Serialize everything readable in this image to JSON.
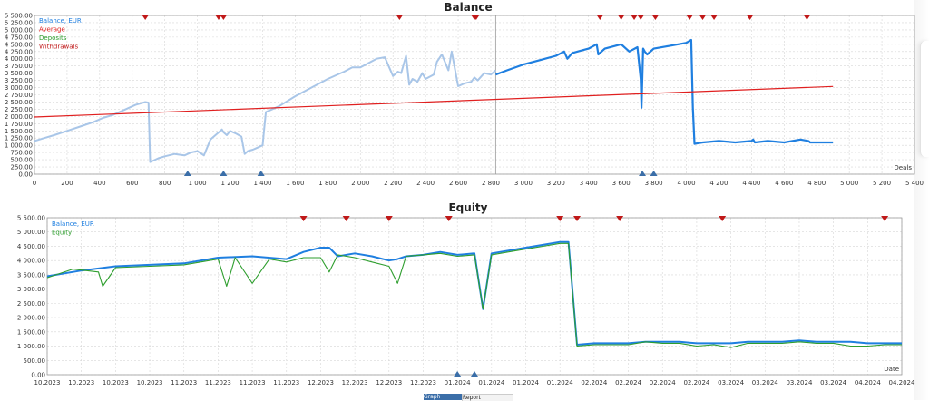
{
  "chart_data": [
    {
      "type": "line",
      "title": "Balance",
      "x_axis_name": "Deals",
      "xlim": [
        0,
        5400
      ],
      "ylim": [
        0,
        5500
      ],
      "x_ticks": [
        0,
        200,
        400,
        600,
        800,
        1000,
        1200,
        1400,
        1600,
        1800,
        2000,
        2200,
        2400,
        2600,
        2800,
        3000,
        3200,
        3400,
        3600,
        3800,
        4000,
        4200,
        4400,
        4600,
        4800,
        5000,
        5200,
        5400
      ],
      "x_tick_labels": [
        "0",
        "200",
        "400",
        "600",
        "800",
        "1 000",
        "1 200",
        "1 400",
        "1 600",
        "1 800",
        "2 000",
        "2 200",
        "2 400",
        "2 600",
        "2 800",
        "3 000",
        "3 200",
        "3 400",
        "3 600",
        "3 800",
        "4 000",
        "4 200",
        "4 400",
        "4 600",
        "4 800",
        "5 000",
        "5 200",
        "5 400"
      ],
      "y_ticks": [
        0,
        250,
        500,
        750,
        1000,
        1250,
        1500,
        1750,
        2000,
        2250,
        2500,
        2750,
        3000,
        3250,
        3500,
        3750,
        4000,
        4250,
        4500,
        4750,
        5000,
        5250,
        5500
      ],
      "y_tick_labels": [
        "0.00",
        "250.00",
        "500.00",
        "750.00",
        "1 000.00",
        "1 250.00",
        "1 500.00",
        "1 750.00",
        "2 000.00",
        "2 250.00",
        "2 500.00",
        "2 750.00",
        "3 000.00",
        "3 250.00",
        "3 500.00",
        "3 750.00",
        "4 000.00",
        "4 250.00",
        "4 500.00",
        "4 750.00",
        "5 000.00",
        "5 250.00",
        "5 500.00"
      ],
      "legend": [
        {
          "label": "Balance, EUR",
          "color": "#1f7fe0"
        },
        {
          "label": "Average",
          "color": "#e02020"
        },
        {
          "label": "Deposits",
          "color": "#2e9e2e"
        },
        {
          "label": "Withdrawals",
          "color": "#c01818"
        }
      ],
      "legend_position": "top-left",
      "grid": true,
      "divider_x": 2830,
      "series": [
        {
          "name": "Balance, EUR (history)",
          "color": "#a9c6e8",
          "x": [
            0,
            60,
            120,
            200,
            280,
            360,
            420,
            480,
            560,
            620,
            680,
            700,
            710,
            760,
            800,
            860,
            920,
            960,
            1000,
            1040,
            1080,
            1120,
            1150,
            1160,
            1180,
            1200,
            1240,
            1270,
            1290,
            1310,
            1340,
            1360,
            1400,
            1410,
            1420,
            1500,
            1600,
            1700,
            1800,
            1900,
            1950,
            2000,
            2050,
            2100,
            2150,
            2200,
            2230,
            2250,
            2280,
            2300,
            2320,
            2350,
            2380,
            2400,
            2450,
            2470,
            2500,
            2540,
            2560,
            2600,
            2640,
            2680,
            2700,
            2720,
            2760,
            2800,
            2830
          ],
          "y": [
            1150,
            1250,
            1350,
            1500,
            1650,
            1800,
            1950,
            2050,
            2250,
            2400,
            2500,
            2480,
            420,
            550,
            620,
            700,
            650,
            750,
            800,
            650,
            1200,
            1400,
            1550,
            1450,
            1350,
            1500,
            1400,
            1300,
            700,
            800,
            850,
            900,
            1000,
            1600,
            2150,
            2350,
            2700,
            3000,
            3300,
            3550,
            3700,
            3700,
            3850,
            4000,
            4050,
            3400,
            3550,
            3500,
            4100,
            3100,
            3300,
            3200,
            3500,
            3300,
            3450,
            3900,
            4150,
            3600,
            4250,
            3050,
            3150,
            3200,
            3350,
            3250,
            3500,
            3450,
            3600
          ]
        },
        {
          "name": "Balance, EUR",
          "color": "#1f7fe0",
          "x": [
            2830,
            2900,
            3000,
            3100,
            3200,
            3250,
            3270,
            3300,
            3400,
            3450,
            3460,
            3500,
            3600,
            3650,
            3700,
            3720,
            3725,
            3735,
            3745,
            3760,
            3800,
            3900,
            4000,
            4030,
            4040,
            4050,
            4100,
            4200,
            4300,
            4400,
            4410,
            4420,
            4500,
            4600,
            4700,
            4750,
            4760,
            4800,
            4900
          ],
          "y": [
            3450,
            3600,
            3800,
            3950,
            4100,
            4250,
            4000,
            4200,
            4350,
            4500,
            4150,
            4350,
            4500,
            4250,
            4400,
            3300,
            2300,
            4350,
            4250,
            4150,
            4350,
            4450,
            4550,
            4650,
            2300,
            1050,
            1100,
            1150,
            1100,
            1150,
            1200,
            1100,
            1150,
            1100,
            1200,
            1150,
            1100,
            1100,
            1100
          ]
        },
        {
          "name": "Average",
          "color": "#e02020",
          "x": [
            0,
            4900
          ],
          "y": [
            1980,
            3040
          ]
        }
      ],
      "withdrawal_markers_x": [
        680,
        1130,
        1160,
        2240,
        2700,
        2710,
        3470,
        3600,
        3680,
        3720,
        3810,
        4020,
        4100,
        4170,
        4390,
        4740
      ],
      "deposit_markers_x": [
        940,
        1160,
        1390,
        3730,
        3800
      ]
    },
    {
      "type": "line",
      "title": "Equity",
      "x_axis_name": "Date",
      "ylim": [
        0,
        5500
      ],
      "x_tick_labels": [
        "10.2023",
        "10.2023",
        "10.2023",
        "10.2023",
        "11.2023",
        "11.2023",
        "11.2023",
        "11.2023",
        "12.2023",
        "12.2023",
        "12.2023",
        "12.2023",
        "01.2024",
        "01.2024",
        "01.2024",
        "01.2024",
        "02.2024",
        "02.2024",
        "02.2024",
        "02.2024",
        "03.2024",
        "03.2024",
        "03.2024",
        "03.2024",
        "04.2024",
        "04.2024"
      ],
      "y_ticks": [
        0,
        500,
        1000,
        1500,
        2000,
        2500,
        3000,
        3500,
        4000,
        4500,
        5000,
        5500
      ],
      "y_tick_labels": [
        "0.00",
        "500.00",
        "1 000.00",
        "1 500.00",
        "2 000.00",
        "2 500.00",
        "3 000.00",
        "3 500.00",
        "4 000.00",
        "4 500.00",
        "5 000.00",
        "5 500.00"
      ],
      "legend": [
        {
          "label": "Balance, EUR",
          "color": "#1f7fe0"
        },
        {
          "label": "Equity",
          "color": "#2e9e2e"
        }
      ],
      "legend_position": "top-left",
      "grid": true,
      "series": [
        {
          "name": "Balance, EUR",
          "color": "#1f7fe0",
          "x": [
            0,
            0.04,
            0.08,
            0.12,
            0.16,
            0.2,
            0.24,
            0.28,
            0.3,
            0.32,
            0.33,
            0.34,
            0.36,
            0.38,
            0.4,
            0.41,
            0.42,
            0.44,
            0.46,
            0.48,
            0.5,
            0.51,
            0.52,
            0.54,
            0.56,
            0.58,
            0.6,
            0.61,
            0.62,
            0.64,
            0.66,
            0.68,
            0.7,
            0.72,
            0.74,
            0.76,
            0.78,
            0.8,
            0.82,
            0.84,
            0.86,
            0.88,
            0.9,
            0.92,
            0.94,
            0.96,
            0.98,
            1.0
          ],
          "y": [
            3450,
            3650,
            3800,
            3850,
            3900,
            4100,
            4150,
            4050,
            4300,
            4450,
            4450,
            4150,
            4250,
            4150,
            4000,
            4050,
            4150,
            4200,
            4300,
            4200,
            4250,
            2300,
            4250,
            4350,
            4450,
            4550,
            4650,
            4650,
            1050,
            1100,
            1100,
            1100,
            1150,
            1150,
            1150,
            1100,
            1100,
            1100,
            1150,
            1150,
            1150,
            1200,
            1150,
            1150,
            1150,
            1100,
            1100,
            1100
          ]
        },
        {
          "name": "Equity",
          "color": "#2e9e2e",
          "x": [
            0,
            0.03,
            0.06,
            0.065,
            0.08,
            0.12,
            0.16,
            0.2,
            0.21,
            0.22,
            0.24,
            0.26,
            0.28,
            0.3,
            0.32,
            0.33,
            0.34,
            0.36,
            0.38,
            0.4,
            0.41,
            0.42,
            0.44,
            0.46,
            0.48,
            0.5,
            0.51,
            0.52,
            0.54,
            0.56,
            0.58,
            0.6,
            0.61,
            0.62,
            0.64,
            0.66,
            0.68,
            0.7,
            0.72,
            0.74,
            0.76,
            0.78,
            0.8,
            0.82,
            0.84,
            0.86,
            0.88,
            0.9,
            0.92,
            0.94,
            0.96,
            0.98,
            1.0
          ],
          "y": [
            3400,
            3700,
            3600,
            3100,
            3750,
            3800,
            3850,
            4050,
            3100,
            4100,
            3200,
            4050,
            3950,
            4100,
            4100,
            3600,
            4200,
            4100,
            3950,
            3800,
            3200,
            4150,
            4200,
            4250,
            4150,
            4200,
            2300,
            4200,
            4300,
            4400,
            4500,
            4600,
            4600,
            1000,
            1050,
            1050,
            1050,
            1150,
            1100,
            1100,
            1000,
            1050,
            950,
            1100,
            1100,
            1100,
            1150,
            1100,
            1100,
            1000,
            1000,
            1050,
            1050
          ]
        }
      ],
      "withdrawal_markers_frac": [
        0.3,
        0.35,
        0.4,
        0.47,
        0.6,
        0.62,
        0.67,
        0.79,
        0.98
      ],
      "deposit_markers_frac": [
        0.48,
        0.5
      ]
    }
  ],
  "bottom_tabs": [
    {
      "label": "Graph"
    },
    {
      "label": "Report"
    }
  ]
}
